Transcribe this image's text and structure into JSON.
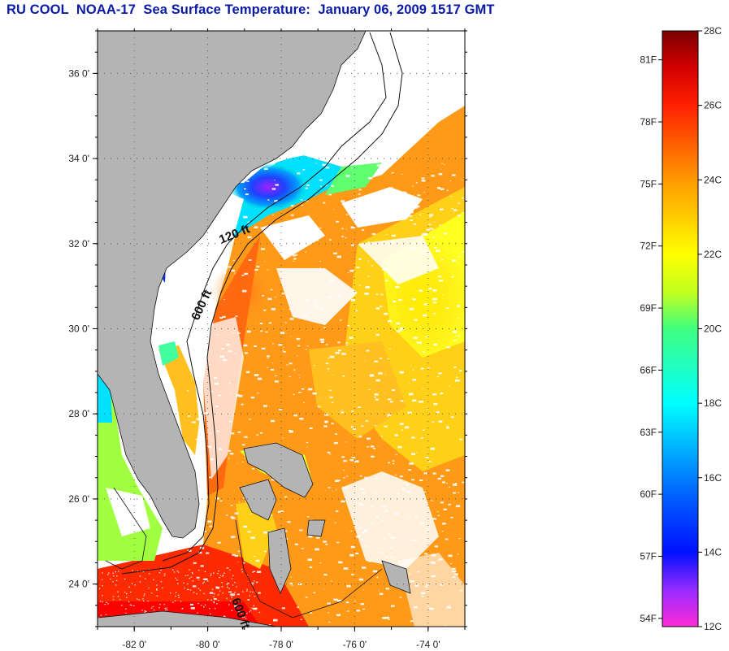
{
  "title": "RU COOL  NOAA-17  Sea Surface Temperature:  January 06, 2009 1517 GMT",
  "map": {
    "lon_range": [
      -83.0,
      -73.0
    ],
    "lat_range": [
      23.0,
      37.0
    ],
    "lat_ticks": [
      "24 0'",
      "26 0'",
      "28 0'",
      "30 0'",
      "32 0'",
      "34 0'",
      "36 0'"
    ],
    "lon_ticks": [
      "-82 0'",
      "-80 0'",
      "-78 0'",
      "-76 0'",
      "-74 0'"
    ],
    "depth_labels": [
      "120 ft",
      "600 ft",
      "600 ft"
    ],
    "land_color": "#b4b4b4",
    "cloud_color": "#ffffff"
  },
  "colorbar": {
    "fahrenheit": [
      "81F",
      "78F",
      "75F",
      "72F",
      "69F",
      "66F",
      "63F",
      "60F",
      "57F",
      "54F"
    ],
    "celsius": [
      "28C",
      "26C",
      "24C",
      "22C",
      "20C",
      "18C",
      "16C",
      "14C",
      "12C"
    ],
    "range_c": [
      12,
      28
    ],
    "colors": [
      "#ff2bd6",
      "#7a2bff",
      "#0010ff",
      "#00a0ff",
      "#00ffff",
      "#40ff80",
      "#c0ff20",
      "#ffff00",
      "#ff9a00",
      "#ff4000",
      "#ff0000",
      "#b00000",
      "#7a0000"
    ]
  }
}
